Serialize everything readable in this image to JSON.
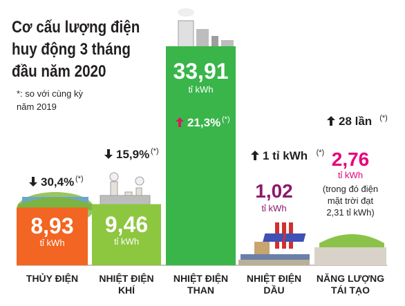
{
  "header": {
    "title_lines": [
      "Cơ cấu lượng điện",
      "huy động 3 tháng",
      "đầu năm 2020"
    ],
    "note_lines": [
      "*: so với cùng kỳ",
      "năm 2019"
    ]
  },
  "chart_data": {
    "type": "bar",
    "unit": "tỉ kWh",
    "categories": [
      "THỦY ĐIỆN",
      "NHIỆT ĐIỆN KHÍ",
      "NHIỆT ĐIỆN THAN",
      "NHIỆT ĐIỆN DẦU",
      "NĂNG LƯỢNG TÁI TẠO"
    ],
    "values": [
      8.93,
      9.46,
      33.91,
      1.02,
      2.76
    ],
    "value_labels": [
      "8,93",
      "9,46",
      "33,91",
      "1,02",
      "2,76"
    ],
    "changes": [
      {
        "direction": "down",
        "text": "30,4%",
        "mark": "(*)"
      },
      {
        "direction": "down",
        "text": "15,9%",
        "mark": "(*)"
      },
      {
        "direction": "up",
        "text": "21,3%",
        "mark": "(*)"
      },
      {
        "direction": "up",
        "text": "1 tỉ kWh",
        "mark": "(*)"
      },
      {
        "direction": "up",
        "text": "28 lần",
        "mark": "(*)"
      }
    ],
    "extra_note_lines": [
      "(trong đó điện",
      "mặt trời đạt",
      "2,31 tỉ kWh)"
    ],
    "colors": [
      "#f26522",
      "#8dc63f",
      "#39b54a",
      "#b8b098",
      "#d9d2c8"
    ],
    "value_colors": [
      "#ffffff",
      "#ffffff",
      "#ffffff",
      "#8b1a6b",
      "#e6007e"
    ]
  }
}
